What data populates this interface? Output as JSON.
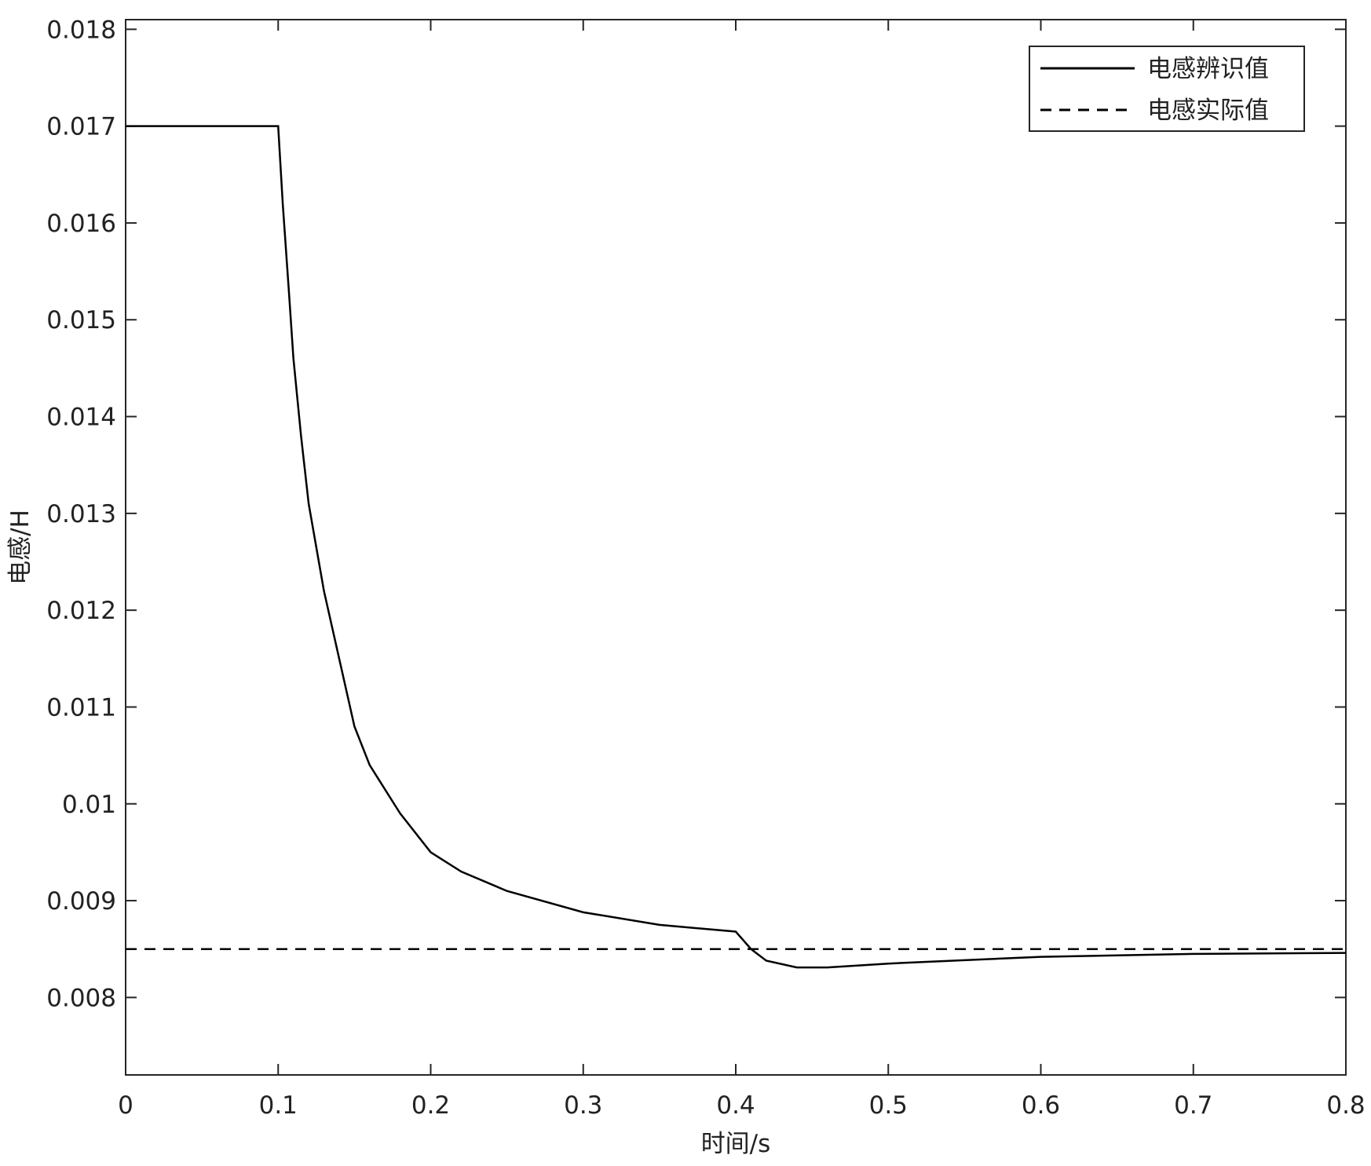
{
  "chart_data": {
    "type": "line",
    "xlabel": "时间/s",
    "ylabel": "电感/H",
    "xlim": [
      0,
      0.8
    ],
    "xticks": [
      0,
      0.1,
      0.2,
      0.3,
      0.4,
      0.5,
      0.6,
      0.7,
      0.8
    ],
    "ylim": [
      0.0072,
      0.0181
    ],
    "yticks": [
      0.008,
      0.009,
      0.01,
      0.011,
      0.012,
      0.013,
      0.014,
      0.015,
      0.016,
      0.017,
      0.018
    ],
    "legend": "upper-right",
    "series": [
      {
        "name": "电感辨识值",
        "color": "#000000",
        "dashed": false,
        "x": [
          0,
          0.1,
          0.103,
          0.107,
          0.11,
          0.115,
          0.12,
          0.13,
          0.14,
          0.15,
          0.16,
          0.18,
          0.2,
          0.22,
          0.25,
          0.3,
          0.35,
          0.4,
          0.41,
          0.42,
          0.44,
          0.46,
          0.5,
          0.6,
          0.7,
          0.8
        ],
        "values": [
          0.017,
          0.017,
          0.0162,
          0.0153,
          0.0146,
          0.0138,
          0.0131,
          0.0122,
          0.0115,
          0.0108,
          0.0104,
          0.0099,
          0.0095,
          0.0093,
          0.0091,
          0.00888,
          0.00875,
          0.00868,
          0.0085,
          0.00838,
          0.00831,
          0.00831,
          0.00835,
          0.00842,
          0.00845,
          0.00846
        ]
      },
      {
        "name": "电感实际值",
        "color": "#000000",
        "dashed": true,
        "x": [
          0,
          0.8
        ],
        "values": [
          0.0085,
          0.0085
        ]
      }
    ]
  }
}
